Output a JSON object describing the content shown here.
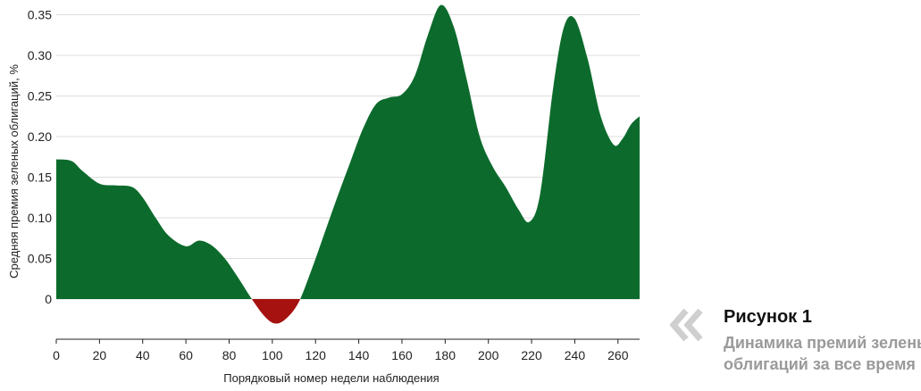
{
  "chart_data": {
    "type": "area",
    "title": "",
    "xlabel": "Порядковый номер недели наблюдения",
    "ylabel": "Средняя премия зеленых облигаций, %",
    "xlim": [
      0,
      270
    ],
    "ylim": [
      -0.05,
      0.36
    ],
    "x_ticks": [
      "0",
      "20",
      "40",
      "60",
      "80",
      "100",
      "120",
      "140",
      "160",
      "180",
      "200",
      "220",
      "240",
      "260"
    ],
    "y_ticks": [
      "0",
      "0.05",
      "0.10",
      "0.15",
      "0.20",
      "0.25",
      "0.30",
      "0.35"
    ],
    "grid": "horizontal",
    "positive_color": "#0c6b2c",
    "negative_color": "#a5120f",
    "series": [
      {
        "x": [
          0,
          7,
          12,
          20,
          27,
          35,
          40,
          46,
          52,
          60,
          66,
          72,
          78,
          84,
          90,
          96,
          101,
          106,
          112,
          118,
          124,
          130,
          136,
          142,
          148,
          154,
          160,
          166,
          172,
          178,
          184,
          190,
          196,
          202,
          208,
          214,
          219,
          224,
          230,
          235,
          240,
          246,
          252,
          258,
          262,
          266,
          270
        ],
        "values": [
          0.172,
          0.17,
          0.158,
          0.142,
          0.14,
          0.138,
          0.125,
          0.1,
          0.078,
          0.065,
          0.072,
          0.066,
          0.05,
          0.027,
          0.002,
          -0.02,
          -0.03,
          -0.025,
          -0.005,
          0.035,
          0.08,
          0.125,
          0.168,
          0.21,
          0.24,
          0.248,
          0.252,
          0.275,
          0.325,
          0.362,
          0.335,
          0.27,
          0.2,
          0.163,
          0.138,
          0.11,
          0.095,
          0.13,
          0.26,
          0.335,
          0.345,
          0.295,
          0.225,
          0.19,
          0.197,
          0.215,
          0.225
        ]
      }
    ]
  },
  "caption": {
    "title": "Рисунок 1",
    "subtitle_line1": "Динамика премий зеленых",
    "subtitle_line2": "облигаций за все время"
  }
}
